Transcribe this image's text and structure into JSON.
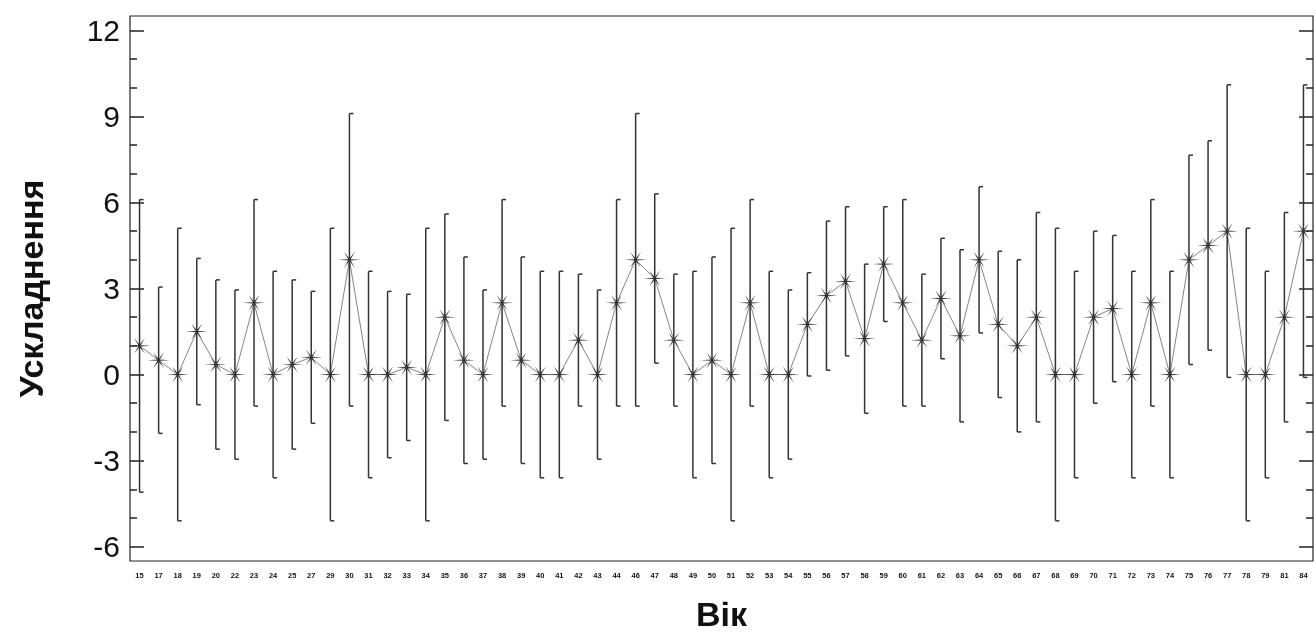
{
  "chart_data": {
    "type": "line",
    "xlabel": "Вік",
    "ylabel": "Ускладнення",
    "categories": [
      "15",
      "17",
      "18",
      "19",
      "20",
      "22",
      "23",
      "24",
      "25",
      "27",
      "29",
      "30",
      "31",
      "32",
      "33",
      "34",
      "35",
      "36",
      "37",
      "38",
      "39",
      "40",
      "41",
      "42",
      "43",
      "44",
      "46",
      "47",
      "48",
      "49",
      "50",
      "51",
      "52",
      "53",
      "54",
      "55",
      "56",
      "57",
      "58",
      "59",
      "60",
      "61",
      "62",
      "63",
      "64",
      "65",
      "66",
      "67",
      "68",
      "69",
      "70",
      "71",
      "72",
      "73",
      "74",
      "75",
      "76",
      "77",
      "78",
      "79",
      "81",
      "84"
    ],
    "series": [
      {
        "color": "#333333",
        "values": [
          1.0,
          0.5,
          0,
          1.5,
          0.35,
          0,
          2.5,
          0,
          0.35,
          0.6,
          0,
          4.0,
          0,
          0,
          0.25,
          0,
          2.0,
          0.5,
          0,
          2.5,
          0.5,
          0,
          0,
          1.2,
          0,
          2.5,
          4.0,
          3.35,
          1.2,
          0,
          0.5,
          0,
          2.5,
          0,
          0,
          1.75,
          2.75,
          3.25,
          1.25,
          3.85,
          2.5,
          1.2,
          2.65,
          1.35,
          4.0,
          1.75,
          1.0,
          2.0,
          0,
          0,
          2.0,
          2.3,
          0,
          2.5,
          0,
          4.0,
          4.5,
          5.0,
          0,
          0,
          2.0,
          5.0
        ],
        "errors": [
          5.1,
          2.55,
          5.1,
          2.55,
          2.95,
          2.95,
          3.6,
          3.6,
          2.95,
          2.3,
          5.1,
          5.1,
          3.6,
          2.9,
          2.55,
          5.1,
          3.6,
          3.6,
          2.95,
          3.6,
          3.6,
          3.6,
          3.6,
          2.3,
          2.95,
          3.6,
          5.1,
          2.95,
          2.3,
          3.6,
          3.6,
          5.1,
          3.6,
          3.6,
          2.95,
          1.8,
          2.6,
          2.6,
          2.6,
          2.0,
          3.6,
          2.3,
          2.1,
          3.0,
          2.55,
          2.55,
          3.0,
          3.65,
          5.1,
          3.6,
          3.0,
          2.55,
          3.6,
          3.6,
          3.6,
          3.65,
          3.65,
          5.1,
          5.1,
          3.6,
          3.65,
          5.1
        ]
      }
    ],
    "ylim": [
      -6.5,
      12.5
    ],
    "yticks": [
      -6,
      -3,
      0,
      3,
      6,
      9,
      12
    ],
    "grid": false,
    "marker": "cross",
    "line_style": "solid"
  }
}
